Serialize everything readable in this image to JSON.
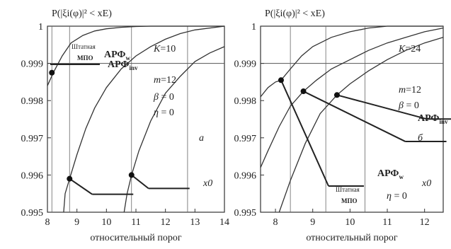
{
  "chart_data": [
    {
      "type": "line",
      "panel_letter": "а",
      "title": "P(|ξi(φ)|² < xE)",
      "xlabel": "относительный порог",
      "x_var": "x0",
      "ylabel": "",
      "xlim": [
        8,
        14
      ],
      "ylim": [
        0.995,
        1
      ],
      "x_ticks": [
        "8",
        "9",
        "10",
        "11",
        "12",
        "13",
        "14"
      ],
      "y_ticks": [
        "0.995",
        "0.996",
        "0.997",
        "0.998",
        "0.999",
        "1"
      ],
      "grid": true,
      "params": [
        "K=10",
        "m=12",
        "β = 0",
        "η = 0"
      ],
      "series": [
        {
          "name": "Штатная МПО",
          "color": "#333333",
          "x": [
            8.0,
            8.2,
            8.5,
            8.8,
            9.2,
            9.6,
            10.0,
            10.5,
            11.0,
            11.5,
            12.0,
            12.5,
            13.0,
            14.0
          ],
          "y": [
            0.9984,
            0.99875,
            0.9992,
            0.99955,
            0.99975,
            0.99987,
            0.99993,
            0.99997,
            0.99999,
            1.0,
            1.0,
            1.0,
            1.0,
            1.0
          ]
        },
        {
          "name": "АРФw",
          "color": "#333333",
          "x": [
            8.55,
            8.6,
            8.75,
            9.0,
            9.3,
            9.6,
            10.0,
            10.5,
            11.0,
            11.5,
            12.0,
            12.5,
            13.0,
            14.0
          ],
          "y": [
            0.995,
            0.9955,
            0.9959,
            0.99655,
            0.99725,
            0.9978,
            0.99835,
            0.99885,
            0.9992,
            0.99945,
            0.99965,
            0.9998,
            0.9999,
            1.0
          ]
        },
        {
          "name": "АРФinv",
          "color": "#333333",
          "x": [
            10.6,
            10.7,
            10.85,
            11.1,
            11.5,
            12.0,
            12.5,
            13.0,
            13.5,
            14.0
          ],
          "y": [
            0.995,
            0.9955,
            0.996,
            0.99665,
            0.99745,
            0.9982,
            0.99865,
            0.99905,
            0.99928,
            0.99945
          ]
        }
      ],
      "markers": [
        {
          "series": "Штатная МПО",
          "x": 8.15,
          "y": 0.99875,
          "label": "Штатная",
          "label2": "МПО"
        },
        {
          "series": "АРФw",
          "x": 8.75,
          "y": 0.9959,
          "label": "АРФ",
          "sub": "w"
        },
        {
          "series": "АРФinv",
          "x": 10.85,
          "y": 0.996,
          "label": "АРФ",
          "sub": "inv"
        }
      ],
      "vlines": [
        8.15,
        8.75,
        10.85,
        12.75
      ],
      "hline": 0.999
    },
    {
      "type": "line",
      "panel_letter": "б",
      "title": "P(|ξi(φ)|² < xE)",
      "xlabel": "относительный порог",
      "x_var": "x0",
      "ylabel": "",
      "xlim": [
        7.6,
        12.5
      ],
      "ylim": [
        0.995,
        1
      ],
      "x_ticks": [
        "8",
        "9",
        "10",
        "11",
        "12"
      ],
      "y_ticks": [
        "0.995",
        "0.996",
        "0.997",
        "0.998",
        "0.999",
        "1"
      ],
      "grid": true,
      "params": [
        "K=24",
        "m=12",
        "β = 0",
        "η = 0"
      ],
      "series": [
        {
          "name": "Штатная МПО",
          "color": "#333333",
          "x": [
            7.6,
            7.8,
            8.0,
            8.15,
            8.4,
            8.7,
            9.0,
            9.5,
            10.0,
            10.5,
            11.0,
            12.5
          ],
          "y": [
            0.9981,
            0.99835,
            0.9985,
            0.99855,
            0.99885,
            0.9992,
            0.99945,
            0.9997,
            0.99985,
            0.99995,
            1.0,
            1.0
          ]
        },
        {
          "name": "АРФw",
          "color": "#333333",
          "x": [
            7.6,
            7.8,
            8.1,
            8.4,
            8.75,
            9.1,
            9.5,
            10.0,
            10.5,
            11.0,
            11.5,
            12.0,
            12.5
          ],
          "y": [
            0.9962,
            0.99665,
            0.9973,
            0.99785,
            0.99825,
            0.99855,
            0.99885,
            0.9991,
            0.99935,
            0.99955,
            0.9997,
            0.99985,
            0.99995
          ]
        },
        {
          "name": "АРФinv",
          "color": "#333333",
          "x": [
            8.1,
            8.4,
            8.8,
            9.2,
            9.65,
            10.0,
            10.5,
            11.0,
            11.5,
            12.0,
            12.5
          ],
          "y": [
            0.995,
            0.99585,
            0.99685,
            0.99765,
            0.99815,
            0.99845,
            0.9988,
            0.9991,
            0.99935,
            0.99955,
            0.9997
          ]
        }
      ],
      "markers": [
        {
          "series": "Штатная МПО",
          "x": 8.15,
          "y": 0.99855,
          "label": "Штатная",
          "label2": "МПО"
        },
        {
          "series": "АРФw",
          "x": 8.75,
          "y": 0.99825,
          "label": "АРФ",
          "sub": "w"
        },
        {
          "series": "АРФinv",
          "x": 9.65,
          "y": 0.99815,
          "label": "АРФ",
          "sub": "inv"
        }
      ],
      "vlines": [
        8.4,
        9.35,
        10.4
      ],
      "hline": 0.999
    }
  ]
}
